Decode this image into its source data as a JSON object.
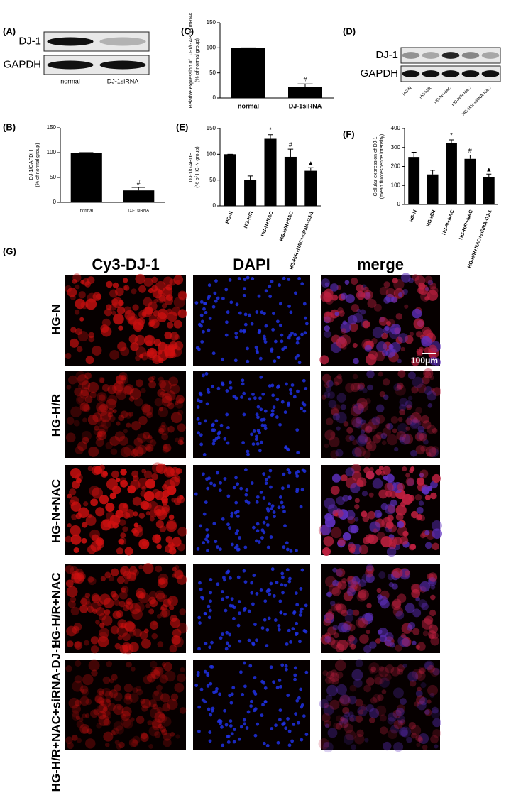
{
  "panel_labels": [
    "(A)",
    "(B)",
    "(C)",
    "(D)",
    "(E)",
    "(F)",
    "(G)"
  ],
  "blot_a": {
    "rows": [
      "DJ-1",
      "GAPDH"
    ],
    "lanes": [
      "normal",
      "DJ-1siRNA"
    ]
  },
  "blot_d": {
    "rows": [
      "DJ-1",
      "GAPDH"
    ],
    "lanes": [
      "HG-N",
      "HG-H/R",
      "HG-N+NAC",
      "HG-H/R-NAC",
      "HG-H/R-siRNA-NAC"
    ]
  },
  "chart_data": [
    {
      "type": "bar",
      "y_label": [
        "DJ-1/GAPDH",
        "(% of normal group)"
      ],
      "categories": [
        "normal",
        "DJ-1siRNA"
      ],
      "values": [
        100,
        24
      ],
      "errors": [
        0,
        6
      ],
      "annotations": [
        null,
        "#"
      ],
      "color": "#000000",
      "ylim": [
        0,
        150
      ],
      "yticks": [
        0,
        50,
        100,
        150
      ]
    },
    {
      "type": "bar",
      "y_label": [
        "Relative expression of DJ-1/GAPDH mRNA",
        "(% of normal group)"
      ],
      "categories": [
        "normal",
        "DJ-1siRNA"
      ],
      "values": [
        100,
        22
      ],
      "errors": [
        0,
        6
      ],
      "annotations": [
        null,
        "#"
      ],
      "color": "#000000",
      "ylim": [
        0,
        150
      ],
      "yticks": [
        0,
        50,
        100,
        150
      ]
    },
    {
      "type": "bar",
      "y_label": [
        "DJ-1/GAPDH",
        "(% of HG-N group)"
      ],
      "categories": [
        "HG-N",
        "HG-H/R",
        "HG-N+NAC",
        "HG-H/R+NAC",
        "HG-H/R+NAC+siRNA-DJ-1"
      ],
      "values": [
        100,
        50,
        130,
        95,
        68
      ],
      "errors": [
        0,
        8,
        8,
        15,
        6
      ],
      "annotations": [
        null,
        null,
        "*",
        "#",
        "▲"
      ],
      "color": "#000000",
      "ylim": [
        0,
        150
      ],
      "yticks": [
        0,
        50,
        100,
        150
      ]
    },
    {
      "type": "bar",
      "y_label": [
        "Cellular expression of DJ-1",
        "(mean fluorescence intensity)"
      ],
      "categories": [
        "HG-N",
        "HG-H/R",
        "HG-N+NAC",
        "HG-H/R+NAC",
        "HG-H/R+NAC+siRNA-DJ-1"
      ],
      "values": [
        250,
        158,
        325,
        240,
        145
      ],
      "errors": [
        25,
        22,
        15,
        20,
        15
      ],
      "annotations": [
        null,
        null,
        "*",
        "#",
        "▲"
      ],
      "color": "#000000",
      "ylim": [
        0,
        400
      ],
      "yticks": [
        0,
        100,
        200,
        300,
        400
      ]
    }
  ],
  "microscopy": {
    "columns": [
      "Cy3-DJ-1",
      "DAPI",
      "merge"
    ],
    "rows": [
      "HG-N",
      "HG-H/R",
      "HG-N+NAC",
      "HG-H/R+NAC",
      "HG-H/R+NAC+siRNA-DJ-1"
    ],
    "scale_bar": "100μm"
  }
}
